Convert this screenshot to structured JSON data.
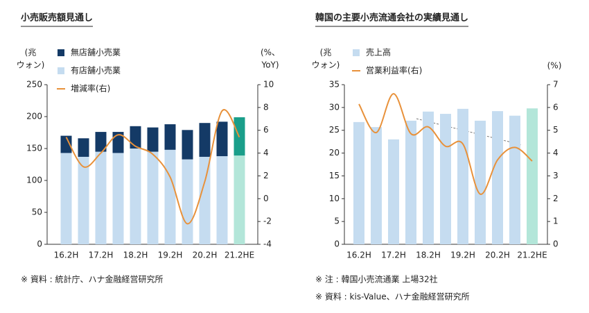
{
  "chart_data": [
    {
      "type": "combo",
      "title": "小売販売額見通し",
      "y_label": [
        "(兆",
        "ウォン)"
      ],
      "y2_label": [
        "(%、",
        "YoY)"
      ],
      "categories": [
        "16.2H",
        null,
        "17.2H",
        null,
        "18.2H",
        null,
        "19.2H",
        null,
        "20.2H",
        null,
        "21.2HE"
      ],
      "series": [
        {
          "name": "有店舗小売業",
          "type": "bar",
          "axis": "y",
          "color": "#c5dcf0",
          "colors": [
            "#c5dcf0",
            "#c5dcf0",
            "#c5dcf0",
            "#c5dcf0",
            "#c5dcf0",
            "#c5dcf0",
            "#c5dcf0",
            "#c5dcf0",
            "#c5dcf0",
            "#c5dcf0",
            "#b3e6d9"
          ],
          "values": [
            143,
            137,
            145,
            143,
            150,
            145,
            148,
            133,
            137,
            138,
            139
          ]
        },
        {
          "name": "無店舗小売業",
          "type": "bar",
          "axis": "y",
          "color": "#143a66",
          "colors": [
            "#143a66",
            "#143a66",
            "#143a66",
            "#143a66",
            "#143a66",
            "#143a66",
            "#143a66",
            "#143a66",
            "#143a66",
            "#143a66",
            "#1a9e8a"
          ],
          "values": [
            27,
            29,
            31,
            33,
            35,
            38,
            40,
            46,
            53,
            54,
            60
          ]
        },
        {
          "name": "増減率(右)",
          "type": "line",
          "axis": "y2",
          "color": "#e8913a",
          "values": [
            5.4,
            2.8,
            4.0,
            5.6,
            4.6,
            3.9,
            1.9,
            -2.2,
            1.5,
            7.7,
            5.4
          ]
        }
      ],
      "legend_order": [
        1,
        0,
        2
      ],
      "ylim": [
        0,
        250
      ],
      "yticks": [
        0,
        50,
        100,
        150,
        200,
        250
      ],
      "y2lim": [
        -4,
        10
      ],
      "y2ticks": [
        -4,
        -2,
        0,
        2,
        4,
        6,
        8,
        10
      ],
      "notes": [
        "※ 資料 : 統計庁、ハナ金融経営研究所"
      ]
    },
    {
      "type": "combo",
      "title": "韓国の主要小売流通会社の実績見通し",
      "y_label": [
        "(兆",
        "ウォン)"
      ],
      "y2_label": [
        "(%)"
      ],
      "categories": [
        "16.2H",
        null,
        "17.2H",
        null,
        "18.2H",
        null,
        "19.2H",
        null,
        "20.2H",
        null,
        "21.2HE"
      ],
      "series": [
        {
          "name": "売上高",
          "type": "bar",
          "axis": "y",
          "color": "#c5dcf0",
          "colors": [
            "#c5dcf0",
            "#c5dcf0",
            "#c5dcf0",
            "#c5dcf0",
            "#c5dcf0",
            "#c5dcf0",
            "#c5dcf0",
            "#c5dcf0",
            "#c5dcf0",
            "#c5dcf0",
            "#b3e6d9"
          ],
          "values": [
            26.8,
            25.7,
            23.0,
            27.1,
            29.1,
            28.6,
            29.7,
            27.1,
            29.2,
            28.2,
            29.8
          ]
        },
        {
          "name": "営業利益率(右)",
          "type": "line",
          "axis": "y2",
          "color": "#e8913a",
          "values": [
            6.15,
            4.9,
            6.6,
            4.85,
            5.15,
            4.3,
            4.4,
            2.2,
            3.7,
            4.25,
            3.65
          ]
        }
      ],
      "legend_order": [
        0,
        1
      ],
      "ylim": [
        0,
        35
      ],
      "yticks": [
        0,
        5,
        10,
        15,
        20,
        25,
        30,
        35
      ],
      "y2lim": [
        0,
        7
      ],
      "y2ticks": [
        0,
        1,
        2,
        3,
        4,
        5,
        6,
        7
      ],
      "notes": [
        "※ 注 : 韓国小売流通業 上場32社",
        "※ 資料 : kis-Value、ハナ金融経営研究所"
      ]
    }
  ]
}
